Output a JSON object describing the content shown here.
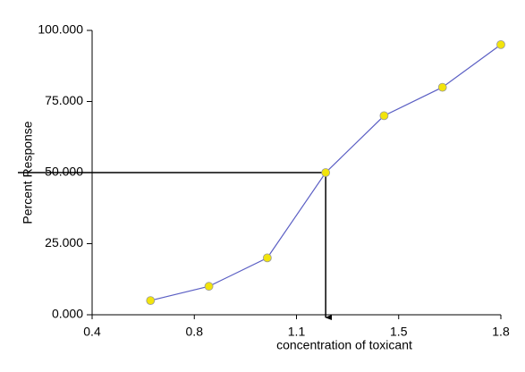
{
  "chart_data": {
    "type": "line",
    "x_label": "concentration of toxicant",
    "y_label": "Percent Response",
    "x": [
      0.6,
      0.8,
      1.0,
      1.2,
      1.4,
      1.6,
      1.8
    ],
    "series": [
      {
        "color": "#5b5fc4",
        "values": [
          5,
          10,
          20,
          50,
          70,
          80,
          95
        ]
      }
    ],
    "marker_color": "#f2e40c",
    "xlim": [
      0.4,
      1.8
    ],
    "xticks": [
      0.4,
      {
        "value": 0.75,
        "label": "0.8"
      },
      1.1,
      {
        "value": 1.45,
        "label": "1.5"
      },
      1.8
    ],
    "ylim": [
      0,
      100
    ],
    "yticks": [
      {
        "value": 0,
        "label": "0.000"
      },
      {
        "value": 25,
        "label": "25.000"
      },
      {
        "value": 50,
        "label": "50.000"
      },
      {
        "value": 75,
        "label": "75.000"
      },
      {
        "value": 100,
        "label": "100.000"
      }
    ],
    "reference_point": {
      "x": 1.2,
      "y": 50
    }
  }
}
